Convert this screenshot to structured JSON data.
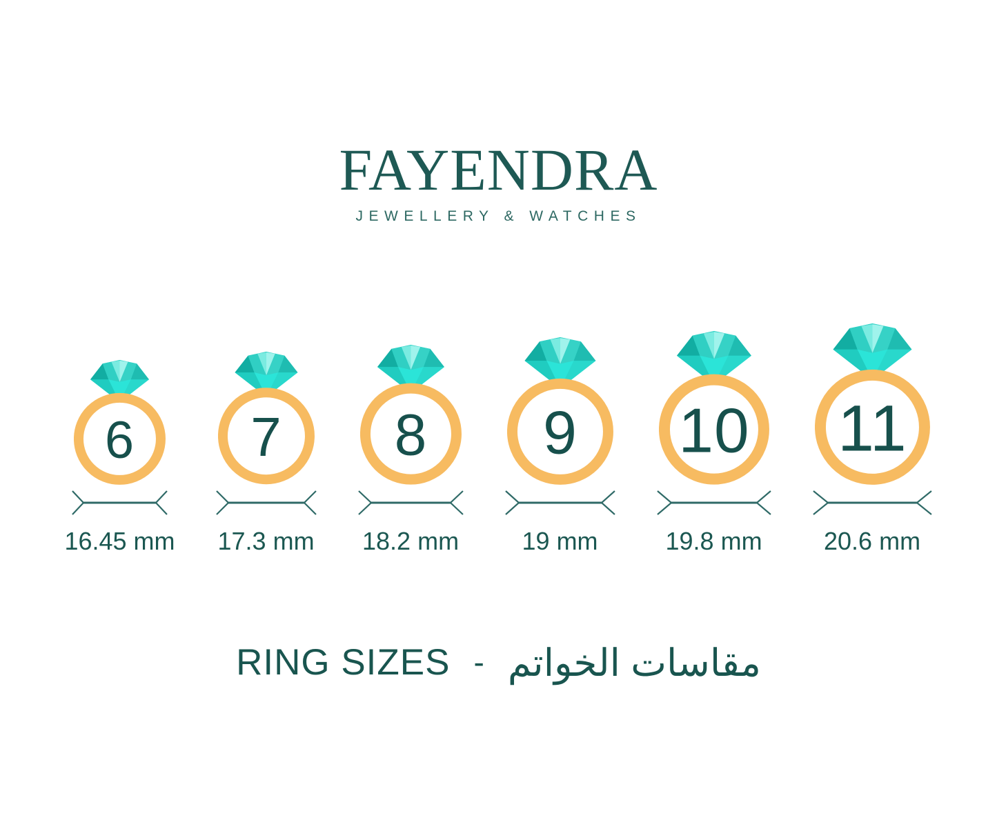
{
  "brand": {
    "name": "FAYENDRA",
    "tagline": "JEWELLERY & WATCHES"
  },
  "rings": [
    {
      "size": "6",
      "mm": 16.45,
      "label": "16.45 mm"
    },
    {
      "size": "7",
      "mm": 17.3,
      "label": "17.3 mm"
    },
    {
      "size": "8",
      "mm": 18.2,
      "label": "18.2 mm"
    },
    {
      "size": "9",
      "mm": 19,
      "label": "19 mm"
    },
    {
      "size": "10",
      "mm": 19.8,
      "label": "19.8 mm"
    },
    {
      "size": "11",
      "mm": 20.6,
      "label": "20.6 mm"
    }
  ],
  "footer": {
    "title_en": "RING SIZES",
    "separator": "-",
    "title_ar": "مقاسات الخواتم"
  },
  "colors": {
    "background": "#FFFFFF",
    "logo_text": "#1E5954",
    "tagline_text": "#2D6862",
    "band": "#F7BB61",
    "digit": "#17504C",
    "label_text": "#1B5751",
    "measure_stroke": "#2F6A67",
    "footer_text": "#19554F",
    "diamond": {
      "base": "#2BE4D8",
      "pav_left": "#20CCC0",
      "pav_right": "#29D8CC",
      "dark_left": "#12ADA2",
      "mid_left": "#30CFC3",
      "mid_right": "#36D2C6",
      "dark_right": "#1FBCB1",
      "light_left": "#7BEBE1",
      "light_right": "#A0F3EC"
    }
  }
}
